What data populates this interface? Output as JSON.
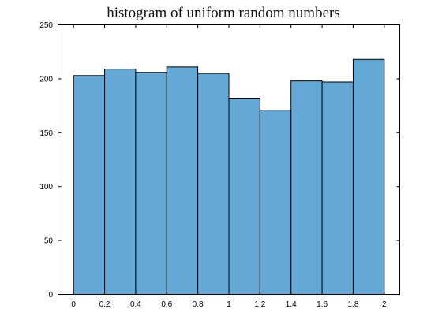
{
  "chart_data": {
    "type": "bar",
    "title": "histogram of uniform random numbers",
    "xlabel": "",
    "ylabel": "",
    "bin_edges": [
      0,
      0.2,
      0.4,
      0.6,
      0.8,
      1.0,
      1.2,
      1.4,
      1.6,
      1.8,
      2.0
    ],
    "values": [
      203,
      209,
      206,
      211,
      205,
      182,
      171,
      198,
      197,
      218
    ],
    "xlim": [
      -0.1,
      2.1
    ],
    "ylim": [
      0,
      250
    ],
    "x_ticks": [
      0,
      0.2,
      0.4,
      0.6,
      0.8,
      1,
      1.2,
      1.4,
      1.6,
      1.8,
      2
    ],
    "x_tick_labels": [
      "0",
      "0.2",
      "0.4",
      "0.6",
      "0.8",
      "1",
      "1.2",
      "1.4",
      "1.6",
      "1.8",
      "2"
    ],
    "y_ticks": [
      0,
      50,
      100,
      150,
      200,
      250
    ],
    "y_tick_labels": [
      "0",
      "50",
      "100",
      "150",
      "200",
      "250"
    ],
    "grid": false,
    "legend": "none",
    "colors": {
      "bar_fill": "#64a9d6",
      "bar_edge": "#000000",
      "axis": "#000000",
      "background": "#ffffff"
    }
  }
}
